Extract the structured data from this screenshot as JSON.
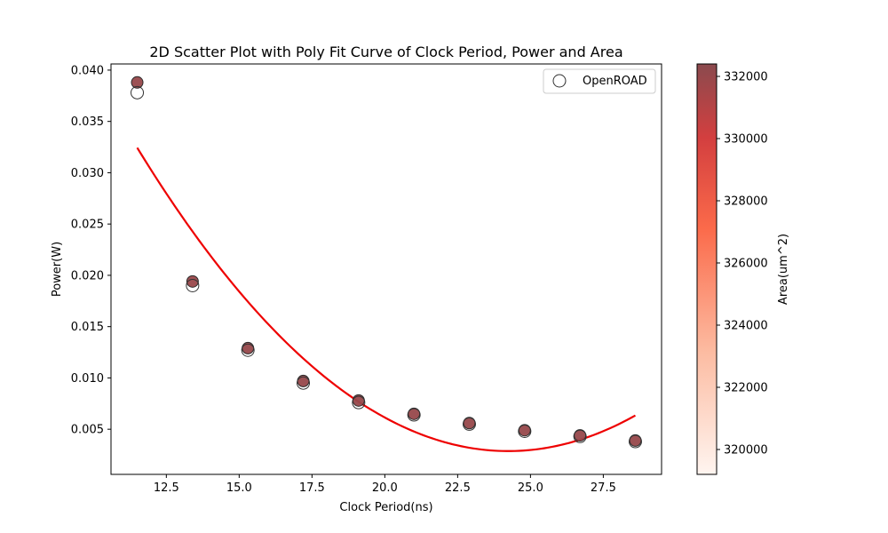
{
  "chart_data": {
    "type": "scatter",
    "title": "2D Scatter Plot with Poly Fit Curve of Clock Period, Power and Area",
    "xlabel": "Clock Period(ns)",
    "ylabel": "Power(W)",
    "xlim": [
      10.6,
      29.5
    ],
    "ylim": [
      0.0006,
      0.0406
    ],
    "xticks": [
      12.5,
      15.0,
      17.5,
      20.0,
      22.5,
      25.0,
      27.5
    ],
    "xtick_labels": [
      "12.5",
      "15.0",
      "17.5",
      "20.0",
      "22.5",
      "25.0",
      "27.5"
    ],
    "yticks": [
      0.005,
      0.01,
      0.015,
      0.02,
      0.025,
      0.03,
      0.035,
      0.04
    ],
    "ytick_labels": [
      "0.005",
      "0.010",
      "0.015",
      "0.020",
      "0.025",
      "0.030",
      "0.035",
      "0.040"
    ],
    "grid": false,
    "legend": {
      "position": "top-right",
      "entries": [
        "OpenROAD"
      ]
    },
    "series": [
      {
        "name": "OpenROAD",
        "marker": "hollow-circle",
        "x": [
          11.5,
          13.4,
          15.3,
          17.2,
          19.1,
          21.0,
          22.9,
          24.8,
          26.7,
          28.6
        ],
        "y": [
          0.0378,
          0.019,
          0.0127,
          0.0095,
          0.0076,
          0.0064,
          0.0055,
          0.0048,
          0.0043,
          0.0038
        ]
      },
      {
        "marker": "filled-circle-colored-by-area",
        "x": [
          11.5,
          13.4,
          15.3,
          17.2,
          19.1,
          21.0,
          22.9,
          24.8,
          26.7,
          28.6
        ],
        "y": [
          0.0388,
          0.0194,
          0.0129,
          0.0097,
          0.0078,
          0.0065,
          0.0056,
          0.0049,
          0.0044,
          0.0039
        ],
        "area": [
          332000,
          331900,
          332000,
          332000,
          332000,
          332000,
          332000,
          332000,
          332000,
          332000
        ]
      }
    ],
    "fit_curve": {
      "type": "poly2",
      "color": "#ee0000",
      "x_range": [
        11.5,
        28.6
      ],
      "points_x": [
        11.5,
        14.0,
        17.0,
        20.0,
        22.0,
        24.0,
        26.0,
        28.6
      ],
      "points_y": [
        0.0322,
        0.0221,
        0.0128,
        0.0062,
        0.0036,
        0.0026,
        0.0033,
        0.0066
      ]
    },
    "colorbar": {
      "label": "Area(um^2)",
      "range": [
        319200,
        332400
      ],
      "ticks": [
        320000,
        322000,
        324000,
        326000,
        328000,
        330000,
        332000
      ],
      "tick_labels": [
        "320000",
        "322000",
        "324000",
        "326000",
        "328000",
        "330000",
        "332000"
      ],
      "colors": [
        "#fff5f0",
        "#fcbba1",
        "#fb6a4a",
        "#d33f3f",
        "#8b4a4e"
      ]
    }
  }
}
